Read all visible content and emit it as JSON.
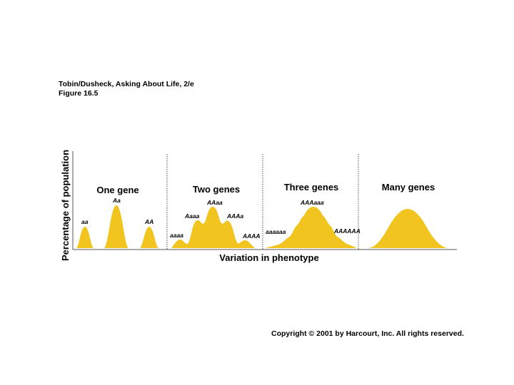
{
  "header": {
    "line1": "Tobin/Dusheck, Asking About Life, 2/e",
    "line2": "Figure 16.5"
  },
  "axes": {
    "ylabel": "Percentage of population",
    "xlabel": "Variation in phenotype"
  },
  "panels": [
    {
      "title": "One gene",
      "genotypes": [
        "aa",
        "Aa",
        "AA"
      ]
    },
    {
      "title": "Two genes",
      "genotypes": [
        "aaaa",
        "Aaaa",
        "AAaa",
        "AAAa",
        "AAAA"
      ]
    },
    {
      "title": "Three genes",
      "genotypes": [
        "aaaaaa",
        "AAAaaa",
        "AAAAAA"
      ]
    },
    {
      "title": "Many genes",
      "genotypes": []
    }
  ],
  "footer": {
    "copyright": "Copyright © 2001 by Harcourt, Inc. All rights reserved."
  },
  "colors": {
    "fill": "#F2C41F",
    "axis": "#555555"
  }
}
